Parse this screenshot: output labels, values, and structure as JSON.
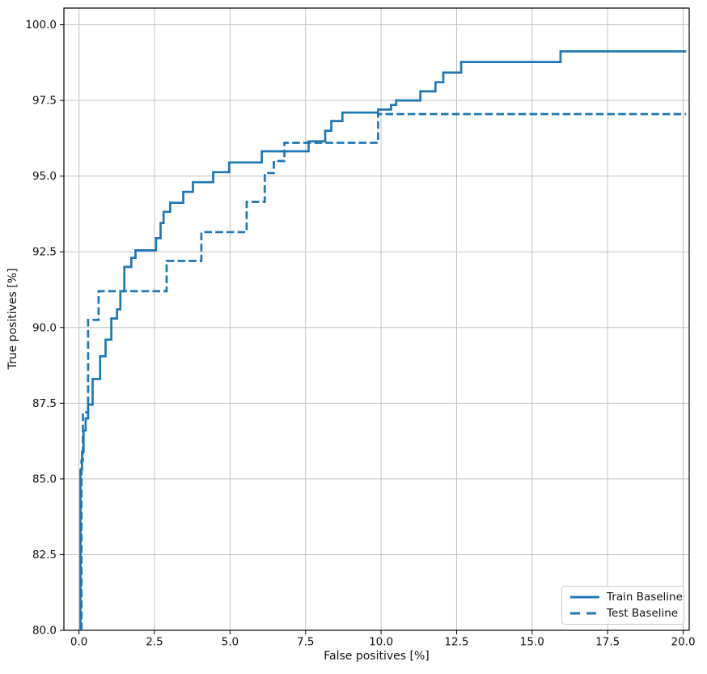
{
  "chart_data": {
    "type": "line",
    "title": "",
    "xlabel": "False positives [%]",
    "ylabel": "True positives [%]",
    "xlim": [
      -0.5,
      20.2
    ],
    "ylim": [
      80,
      100.55
    ],
    "grid": true,
    "grid_color": "#c0c0c0",
    "spine_color": "#000000",
    "line_color": "#1f77b4",
    "legend_position": "lower right",
    "x_ticks": [
      0,
      2.5,
      5,
      7.5,
      10,
      12.5,
      15,
      17.5,
      20
    ],
    "x_tick_labels": [
      "0.0",
      "2.5",
      "5.0",
      "7.5",
      "10.0",
      "12.5",
      "15.0",
      "17.5",
      "20.0"
    ],
    "y_ticks": [
      80,
      82.5,
      85,
      87.5,
      90,
      92.5,
      95,
      97.5,
      100
    ],
    "y_tick_labels": [
      "80.0",
      "82.5",
      "85.0",
      "87.5",
      "90.0",
      "92.5",
      "95.0",
      "97.5",
      "100.0"
    ],
    "series": [
      {
        "name": "Train Baseline",
        "style": "solid",
        "start_x": 0.05,
        "points": [
          [
            0.05,
            85.3
          ],
          [
            0.1,
            85.9
          ],
          [
            0.15,
            86.6
          ],
          [
            0.22,
            87.0
          ],
          [
            0.3,
            87.45
          ],
          [
            0.45,
            88.3
          ],
          [
            0.7,
            89.05
          ],
          [
            0.88,
            89.6
          ],
          [
            1.07,
            90.3
          ],
          [
            1.26,
            90.6
          ],
          [
            1.37,
            91.2
          ],
          [
            1.5,
            92.0
          ],
          [
            1.73,
            92.3
          ],
          [
            1.87,
            92.55
          ],
          [
            2.55,
            92.95
          ],
          [
            2.7,
            93.45
          ],
          [
            2.8,
            93.82
          ],
          [
            3.02,
            94.12
          ],
          [
            3.45,
            94.48
          ],
          [
            3.77,
            94.8
          ],
          [
            4.44,
            95.13
          ],
          [
            4.97,
            95.45
          ],
          [
            6.05,
            95.82
          ],
          [
            7.6,
            96.15
          ],
          [
            8.15,
            96.5
          ],
          [
            8.35,
            96.82
          ],
          [
            8.72,
            97.1
          ],
          [
            9.9,
            97.2
          ],
          [
            10.33,
            97.35
          ],
          [
            10.5,
            97.5
          ],
          [
            11.3,
            97.8
          ],
          [
            11.8,
            98.1
          ],
          [
            12.06,
            98.42
          ],
          [
            12.65,
            98.77
          ],
          [
            15.94,
            99.12
          ],
          [
            20.1,
            99.12
          ]
        ]
      },
      {
        "name": "Test Baseline",
        "style": "dashed",
        "start_x": 0.08,
        "points": [
          [
            0.08,
            85.6
          ],
          [
            0.13,
            87.2
          ],
          [
            0.3,
            90.25
          ],
          [
            0.65,
            91.2
          ],
          [
            2.9,
            92.2
          ],
          [
            4.05,
            93.15
          ],
          [
            5.55,
            94.15
          ],
          [
            6.15,
            95.1
          ],
          [
            6.45,
            95.5
          ],
          [
            6.8,
            96.1
          ],
          [
            9.9,
            97.05
          ],
          [
            20.1,
            97.05
          ]
        ]
      }
    ]
  }
}
